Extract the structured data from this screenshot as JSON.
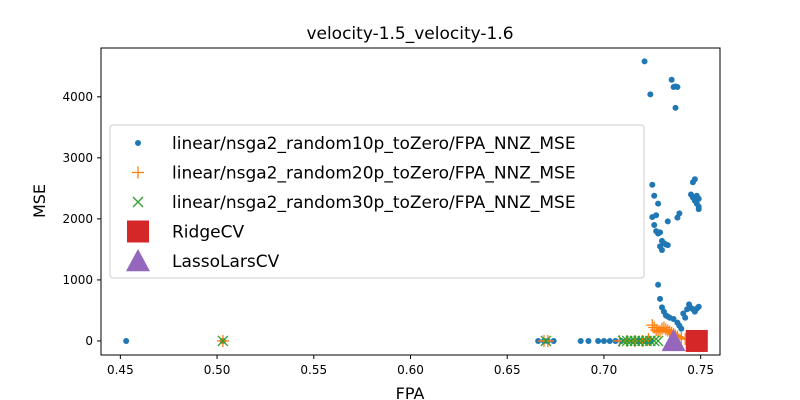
{
  "chart_data": {
    "type": "scatter",
    "title": "velocity-1.5_velocity-1.6",
    "xlabel": "FPA",
    "ylabel": "MSE",
    "xlim": [
      0.44,
      0.76
    ],
    "ylim": [
      -230,
      4800
    ],
    "xticks": [
      "0.45",
      "0.50",
      "0.55",
      "0.60",
      "0.65",
      "0.70",
      "0.75"
    ],
    "yticks": [
      "0",
      "1000",
      "2000",
      "3000",
      "4000"
    ],
    "grid": false,
    "legend_position": "upper-left",
    "series": [
      {
        "name": "linear/nsga2_random10p_toZero/FPA_NNZ_MSE",
        "marker": "circle",
        "color": "#1f77b4",
        "x": [
          0.453,
          0.503,
          0.666,
          0.669,
          0.671,
          0.674,
          0.688,
          0.692,
          0.697,
          0.7,
          0.703,
          0.706,
          0.709,
          0.712,
          0.715,
          0.718,
          0.72,
          0.722,
          0.724,
          0.721,
          0.724,
          0.735,
          0.736,
          0.737,
          0.738,
          0.737,
          0.725,
          0.726,
          0.727,
          0.728,
          0.729,
          0.73,
          0.731,
          0.732,
          0.733,
          0.725,
          0.726,
          0.727,
          0.728,
          0.729,
          0.73,
          0.733,
          0.728,
          0.729,
          0.73,
          0.731,
          0.732,
          0.733,
          0.734,
          0.736,
          0.738,
          0.739,
          0.74,
          0.741,
          0.742,
          0.743,
          0.744,
          0.745,
          0.746,
          0.747,
          0.748,
          0.749,
          0.745,
          0.746,
          0.747,
          0.748,
          0.749,
          0.746,
          0.747,
          0.748,
          0.749,
          0.749,
          0.738,
          0.739
        ],
        "y": [
          0,
          0,
          0,
          0,
          0,
          0,
          0,
          0,
          0,
          0,
          0,
          0,
          0,
          0,
          0,
          0,
          0,
          0,
          0,
          4580,
          4040,
          4280,
          4160,
          4170,
          4160,
          3820,
          2560,
          2380,
          2060,
          2250,
          1780,
          1640,
          1600,
          1580,
          1570,
          2030,
          1900,
          1800,
          1760,
          1550,
          1490,
          1960,
          920,
          690,
          550,
          480,
          420,
          400,
          380,
          360,
          300,
          250,
          200,
          450,
          380,
          520,
          600,
          540,
          520,
          480,
          530,
          560,
          2400,
          2350,
          2300,
          2250,
          2200,
          2600,
          2650,
          2380,
          2330,
          2160,
          2020,
          2090
        ]
      },
      {
        "name": "linear/nsga2_random20p_toZero/FPA_NNZ_MSE",
        "marker": "plus",
        "color": "#ff7f0e",
        "x": [
          0.503,
          0.669,
          0.671,
          0.708,
          0.712,
          0.716,
          0.72,
          0.723,
          0.725,
          0.726,
          0.727,
          0.728,
          0.729,
          0.73,
          0.731,
          0.732,
          0.733,
          0.734,
          0.735,
          0.736,
          0.737,
          0.738,
          0.74,
          0.742
        ],
        "y": [
          0,
          0,
          0,
          0,
          0,
          0,
          0,
          30,
          260,
          220,
          180,
          150,
          160,
          200,
          220,
          190,
          170,
          150,
          130,
          110,
          90,
          70,
          50,
          30
        ]
      },
      {
        "name": "linear/nsga2_random30p_toZero/FPA_NNZ_MSE",
        "marker": "x",
        "color": "#2ca02c",
        "x": [
          0.503,
          0.67,
          0.71,
          0.712,
          0.714,
          0.716,
          0.718,
          0.72,
          0.722,
          0.724,
          0.726,
          0.728
        ],
        "y": [
          0,
          0,
          0,
          0,
          0,
          0,
          0,
          0,
          0,
          0,
          0,
          0
        ]
      },
      {
        "name": "RidgeCV",
        "marker": "square",
        "color": "#d62728",
        "x": [
          0.748
        ],
        "y": [
          0
        ]
      },
      {
        "name": "LassoLarsCV",
        "marker": "triangle",
        "color": "#9467bd",
        "x": [
          0.736
        ],
        "y": [
          0
        ]
      }
    ]
  }
}
